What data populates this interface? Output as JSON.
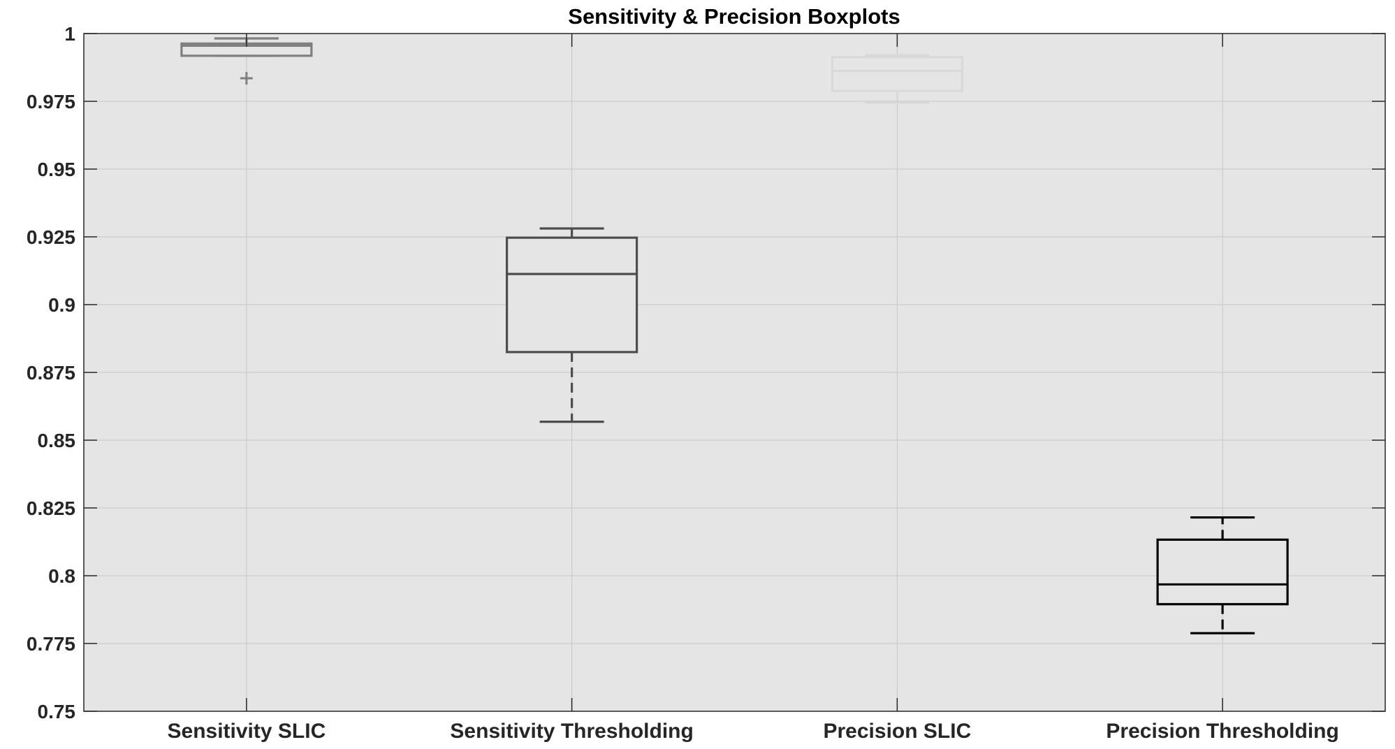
{
  "chart_data": {
    "type": "boxplot",
    "title": "Sensitivity & Precision Boxplots",
    "xlabel": "",
    "ylabel": "",
    "ylim": [
      0.75,
      1
    ],
    "grid": true,
    "yticks": [
      "0.75",
      "0.775",
      "0.8",
      "0.825",
      "0.85",
      "0.875",
      "0.9",
      "0.925",
      "0.95",
      "0.975",
      "1"
    ],
    "categories": [
      "Sensitivity SLIC",
      "Sensitivity Thresholding",
      "Precision SLIC",
      "Precision Thresholding"
    ],
    "boxes": [
      {
        "category": "Sensitivity SLIC",
        "color": "#7f7f7f",
        "whisker_low": 0.9918,
        "q1": 0.9918,
        "median": 0.9955,
        "q3": 0.9963,
        "whisker_high": 0.9982,
        "outliers": [
          0.9835
        ]
      },
      {
        "category": "Sensitivity Thresholding",
        "color": "#4d4d4d",
        "whisker_low": 0.8568,
        "q1": 0.8825,
        "median": 0.9113,
        "q3": 0.9247,
        "whisker_high": 0.9281,
        "outliers": []
      },
      {
        "category": "Precision SLIC",
        "color": "#d9d9d9",
        "whisker_low": 0.9745,
        "q1": 0.9788,
        "median": 0.9862,
        "q3": 0.9913,
        "whisker_high": 0.992,
        "outliers": []
      },
      {
        "category": "Precision Thresholding",
        "color": "#000000",
        "whisker_low": 0.7788,
        "q1": 0.7895,
        "median": 0.7968,
        "q3": 0.8133,
        "whisker_high": 0.8215,
        "outliers": []
      }
    ],
    "colors": {
      "axes_background": "#e5e5e5",
      "grid": "#c6c6c6",
      "axis": "#262626"
    }
  }
}
